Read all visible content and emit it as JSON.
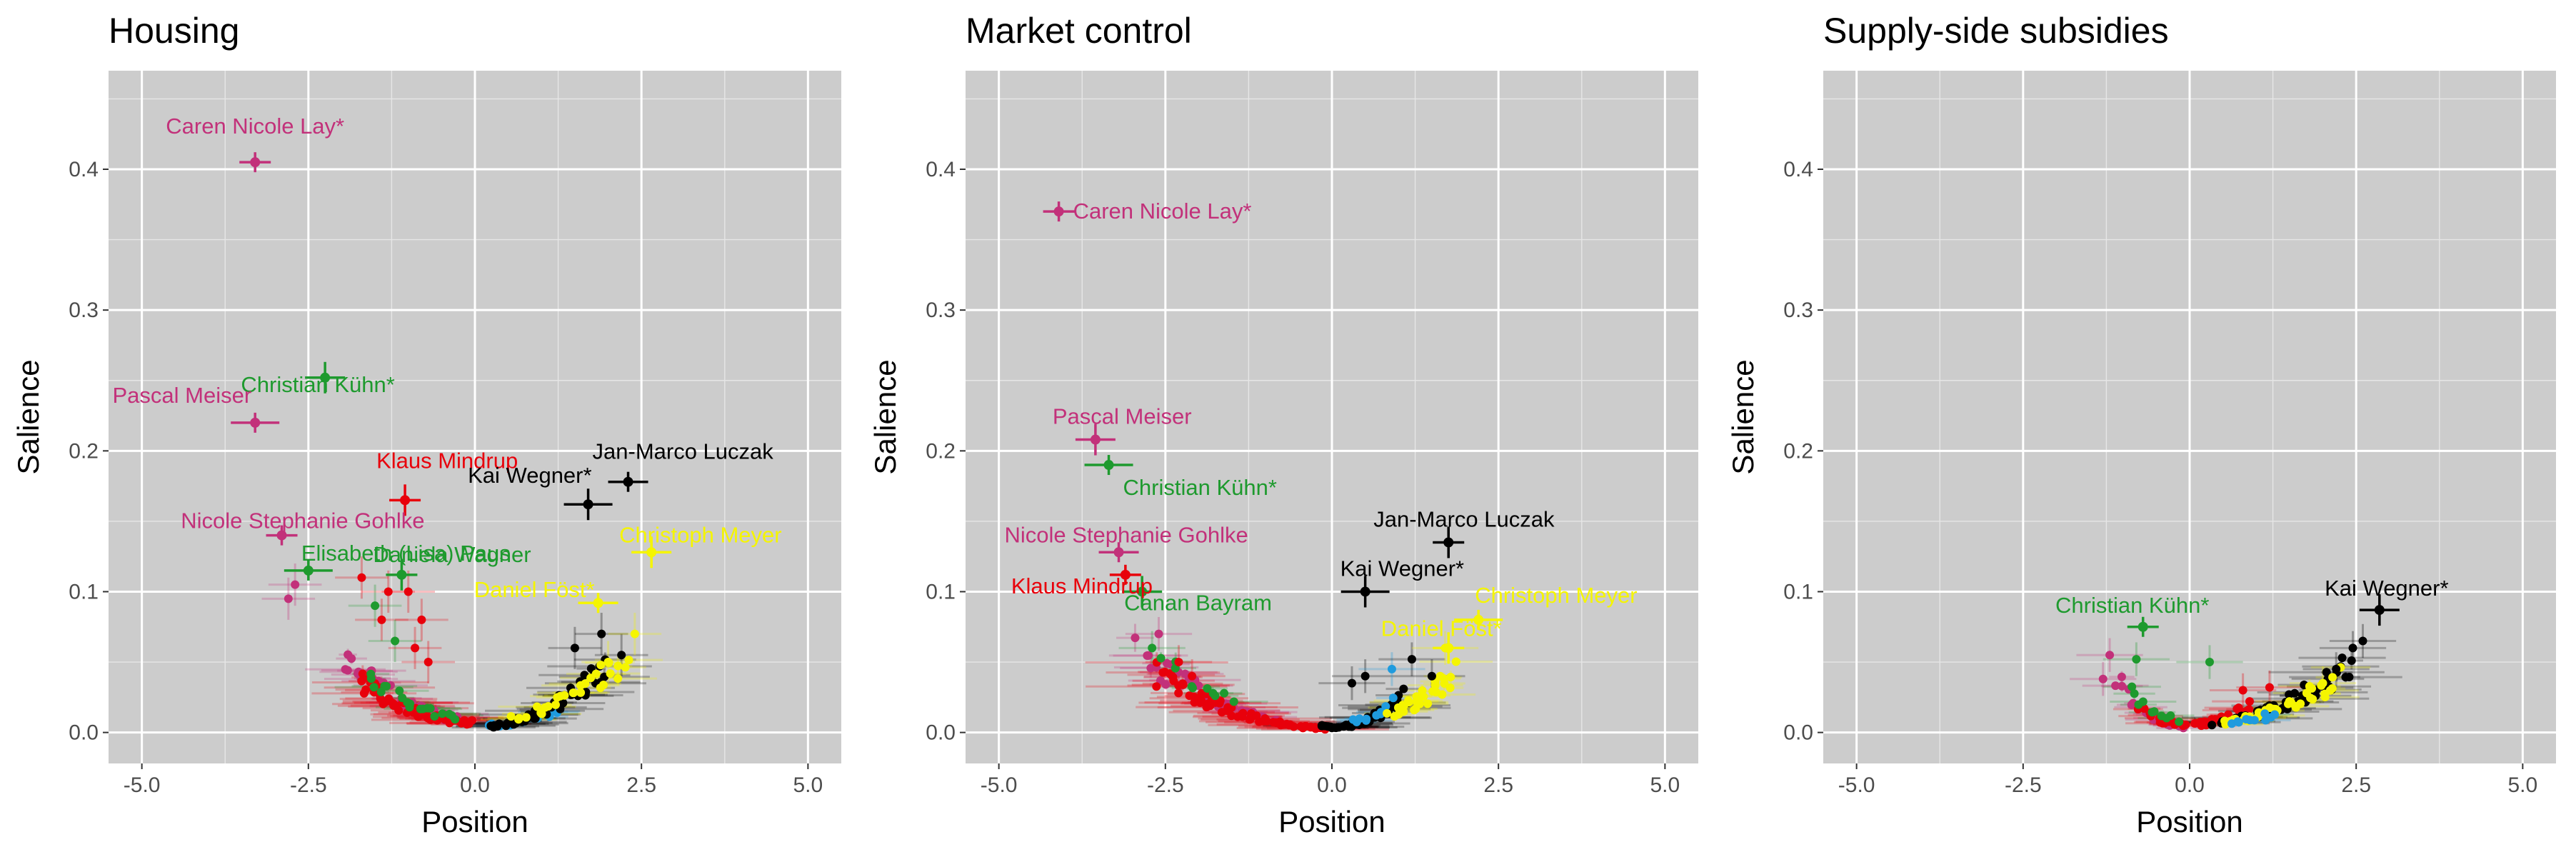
{
  "chart_data": [
    {
      "type": "scatter",
      "title": "Housing",
      "xlabel": "Position",
      "ylabel": "Salience",
      "xlim": [
        -5.5,
        5.5
      ],
      "ylim": [
        -0.022,
        0.47
      ],
      "x_ticks": [
        "-5.0",
        "-2.5",
        "0.0",
        "2.5",
        "5.0"
      ],
      "x_tick_values": [
        -5,
        -2.5,
        0,
        2.5,
        5
      ],
      "y_ticks": [
        "0.0",
        "0.1",
        "0.2",
        "0.3",
        "0.4"
      ],
      "y_tick_values": [
        0,
        0.1,
        0.2,
        0.3,
        0.4
      ],
      "grid": true,
      "labeled_points": [
        {
          "label": "Caren Nicole Lay*",
          "x": -3.3,
          "y": 0.405,
          "color": "#C2317A"
        },
        {
          "label": "Christian Kühn*",
          "x": -2.25,
          "y": 0.252,
          "color": "#1E9A2E"
        },
        {
          "label": "Pascal Meiser",
          "x": -3.3,
          "y": 0.22,
          "color": "#C2317A"
        },
        {
          "label": "Klaus Mindrup",
          "x": -1.05,
          "y": 0.165,
          "color": "#E8000B"
        },
        {
          "label": "Jan-Marco Luczak",
          "x": 2.3,
          "y": 0.178,
          "color": "#000000"
        },
        {
          "label": "Kai Wegner*",
          "x": 1.7,
          "y": 0.162,
          "color": "#000000"
        },
        {
          "label": "Nicole Stephanie Gohlke",
          "x": -2.9,
          "y": 0.14,
          "color": "#C2317A"
        },
        {
          "label": "Christoph Meyer",
          "x": 2.65,
          "y": 0.128,
          "color": "#F5F500"
        },
        {
          "label": "Elisabeth (Lisa) Paus",
          "x": -2.5,
          "y": 0.115,
          "color": "#1E9A2E"
        },
        {
          "label": "Daniela Wagner",
          "x": -1.1,
          "y": 0.112,
          "color": "#1E9A2E"
        },
        {
          "label": "Daniel Föst*",
          "x": 1.85,
          "y": 0.092,
          "color": "#F5F500"
        }
      ]
    },
    {
      "type": "scatter",
      "title": "Market control",
      "xlabel": "Position",
      "ylabel": "Salience",
      "xlim": [
        -5.5,
        5.5
      ],
      "ylim": [
        -0.022,
        0.47
      ],
      "x_ticks": [
        "-5.0",
        "-2.5",
        "0.0",
        "2.5",
        "5.0"
      ],
      "x_tick_values": [
        -5,
        -2.5,
        0,
        2.5,
        5
      ],
      "y_ticks": [
        "0.0",
        "0.1",
        "0.2",
        "0.3",
        "0.4"
      ],
      "y_tick_values": [
        0,
        0.1,
        0.2,
        0.3,
        0.4
      ],
      "grid": true,
      "labeled_points": [
        {
          "label": "Caren Nicole Lay*",
          "x": -4.1,
          "y": 0.37,
          "color": "#C2317A"
        },
        {
          "label": "Pascal Meiser",
          "x": -3.55,
          "y": 0.208,
          "color": "#C2317A"
        },
        {
          "label": "Christian Kühn*",
          "x": -3.35,
          "y": 0.19,
          "color": "#1E9A2E"
        },
        {
          "label": "Jan-Marco Luczak",
          "x": 1.75,
          "y": 0.135,
          "color": "#000000"
        },
        {
          "label": "Nicole Stephanie Gohlke",
          "x": -3.2,
          "y": 0.128,
          "color": "#C2317A"
        },
        {
          "label": "Kai Wegner*",
          "x": 0.5,
          "y": 0.1,
          "color": "#000000"
        },
        {
          "label": "Klaus Mindrup",
          "x": -3.1,
          "y": 0.112,
          "color": "#E8000B"
        },
        {
          "label": "Canan Bayram",
          "x": -2.85,
          "y": 0.1,
          "color": "#1E9A2E"
        },
        {
          "label": "Christoph Meyer",
          "x": 2.2,
          "y": 0.08,
          "color": "#F5F500"
        },
        {
          "label": "Daniel Föst*",
          "x": 1.75,
          "y": 0.06,
          "color": "#F5F500"
        }
      ]
    },
    {
      "type": "scatter",
      "title": "Supply-side subsidies",
      "xlabel": "Position",
      "ylabel": "Salience",
      "xlim": [
        -5.5,
        5.5
      ],
      "ylim": [
        -0.022,
        0.47
      ],
      "x_ticks": [
        "-5.0",
        "-2.5",
        "0.0",
        "2.5",
        "5.0"
      ],
      "x_tick_values": [
        -5,
        -2.5,
        0,
        2.5,
        5
      ],
      "y_ticks": [
        "0.0",
        "0.1",
        "0.2",
        "0.3",
        "0.4"
      ],
      "y_tick_values": [
        0,
        0.1,
        0.2,
        0.3,
        0.4
      ],
      "grid": true,
      "labeled_points": [
        {
          "label": "Christian Kühn*",
          "x": -0.7,
          "y": 0.075,
          "color": "#1E9A2E"
        },
        {
          "label": "Kai Wegner*",
          "x": 2.85,
          "y": 0.087,
          "color": "#000000"
        }
      ]
    }
  ]
}
